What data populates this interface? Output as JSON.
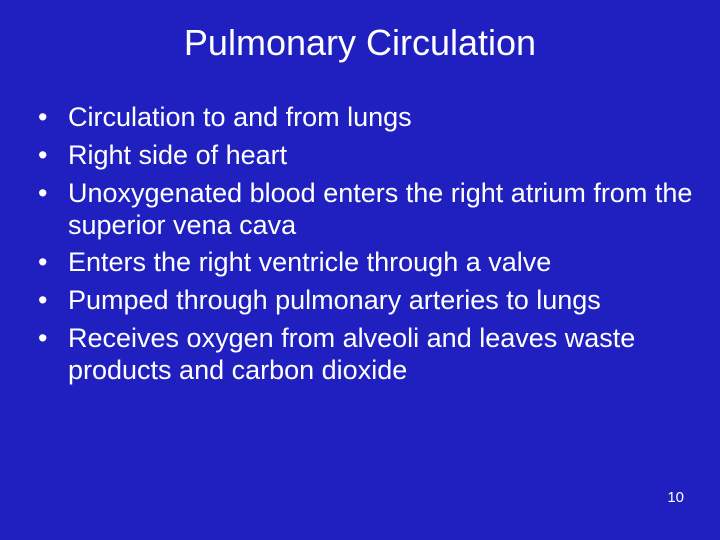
{
  "background_color": "#2020c0",
  "text_color": "#ffffff",
  "title": "Pulmonary Circulation",
  "title_fontsize": 36,
  "bullet_fontsize": 27,
  "bullets": [
    "Circulation to and from lungs",
    "Right side of heart",
    "Unoxygenated blood enters the right atrium from the superior vena cava",
    "Enters the right ventricle through a valve",
    "Pumped through pulmonary arteries to lungs",
    "Receives oxygen from alveoli and leaves waste products and carbon dioxide"
  ],
  "page_number": "10",
  "page_number_fontsize": 15
}
